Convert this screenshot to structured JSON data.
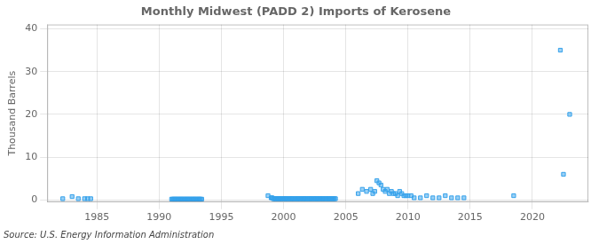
{
  "chart_data": {
    "type": "scatter",
    "title": "Monthly Midwest (PADD 2) Imports of Kerosene",
    "ylabel": "Thousand Barrels",
    "source": "Source: U.S. Energy Information Administration",
    "marker": "square",
    "grid": true,
    "xlim": [
      1981.0,
      2024.5
    ],
    "ylim": [
      -0.5,
      41
    ],
    "xticks": [
      1985,
      1990,
      1995,
      2000,
      2005,
      2010,
      2015,
      2020
    ],
    "yticks": [
      0,
      10,
      20,
      30,
      40
    ],
    "x": [
      1982.25,
      1983.0,
      1983.5,
      1984.0,
      1984.25,
      1984.5,
      1991.0,
      1991.08,
      1991.17,
      1991.25,
      1991.33,
      1991.42,
      1991.5,
      1991.58,
      1991.67,
      1991.75,
      1991.83,
      1991.92,
      1992.0,
      1992.08,
      1992.17,
      1992.25,
      1992.33,
      1992.42,
      1992.5,
      1992.58,
      1992.67,
      1992.75,
      1992.83,
      1992.92,
      1993.0,
      1993.08,
      1993.17,
      1993.25,
      1993.33,
      1993.42,
      1998.75,
      1999.0,
      1999.08,
      1999.17,
      1999.25,
      1999.33,
      1999.42,
      1999.5,
      1999.58,
      1999.67,
      1999.75,
      1999.83,
      1999.92,
      2000.0,
      2000.08,
      2000.17,
      2000.25,
      2000.33,
      2000.42,
      2000.5,
      2000.58,
      2000.67,
      2000.75,
      2000.83,
      2000.92,
      2001.0,
      2001.08,
      2001.17,
      2001.25,
      2001.33,
      2001.42,
      2001.5,
      2001.58,
      2001.67,
      2001.75,
      2001.83,
      2001.92,
      2002.0,
      2002.08,
      2002.17,
      2002.25,
      2002.33,
      2002.42,
      2002.5,
      2002.58,
      2002.67,
      2002.75,
      2002.83,
      2002.92,
      2003.0,
      2003.08,
      2003.17,
      2003.25,
      2003.33,
      2003.42,
      2003.5,
      2003.58,
      2003.67,
      2003.75,
      2003.83,
      2003.92,
      2004.0,
      2004.08,
      2004.17,
      2006.0,
      2006.33,
      2006.67,
      2007.0,
      2007.17,
      2007.33,
      2007.5,
      2007.67,
      2007.83,
      2008.0,
      2008.17,
      2008.33,
      2008.5,
      2008.67,
      2008.83,
      2009.0,
      2009.17,
      2009.33,
      2009.5,
      2009.67,
      2009.83,
      2010.0,
      2010.25,
      2010.5,
      2011.0,
      2011.5,
      2012.0,
      2012.5,
      2013.0,
      2013.5,
      2014.0,
      2014.5,
      2018.5,
      2022.25,
      2022.5,
      2023.0
    ],
    "values": [
      0.3,
      0.8,
      0.3,
      0.3,
      0.3,
      0.3,
      0.2,
      0.2,
      0.2,
      0.2,
      0.2,
      0.2,
      0.2,
      0.2,
      0.2,
      0.2,
      0.2,
      0.2,
      0.2,
      0.2,
      0.2,
      0.2,
      0.2,
      0.2,
      0.2,
      0.2,
      0.2,
      0.2,
      0.2,
      0.2,
      0.2,
      0.2,
      0.2,
      0.2,
      0.2,
      0.2,
      1.0,
      0.5,
      0.5,
      0.3,
      0.3,
      0.3,
      0.3,
      0.3,
      0.3,
      0.3,
      0.3,
      0.3,
      0.3,
      0.3,
      0.3,
      0.3,
      0.3,
      0.3,
      0.3,
      0.3,
      0.3,
      0.3,
      0.3,
      0.3,
      0.3,
      0.3,
      0.3,
      0.3,
      0.3,
      0.3,
      0.3,
      0.3,
      0.3,
      0.3,
      0.3,
      0.3,
      0.3,
      0.3,
      0.3,
      0.3,
      0.3,
      0.3,
      0.3,
      0.3,
      0.3,
      0.3,
      0.3,
      0.3,
      0.3,
      0.3,
      0.3,
      0.3,
      0.3,
      0.3,
      0.3,
      0.3,
      0.3,
      0.3,
      0.3,
      0.3,
      0.3,
      0.3,
      0.3,
      0.3,
      1.5,
      2.5,
      2.0,
      2.5,
      1.5,
      2.0,
      4.5,
      4.0,
      3.5,
      2.5,
      2.0,
      2.5,
      1.5,
      2.0,
      1.5,
      1.5,
      1.0,
      2.0,
      1.5,
      1.0,
      1.0,
      1.0,
      1.0,
      0.5,
      0.5,
      1.0,
      0.5,
      0.5,
      1.0,
      0.5,
      0.5,
      0.5,
      1.0,
      35.0,
      6.0,
      20.0
    ]
  }
}
